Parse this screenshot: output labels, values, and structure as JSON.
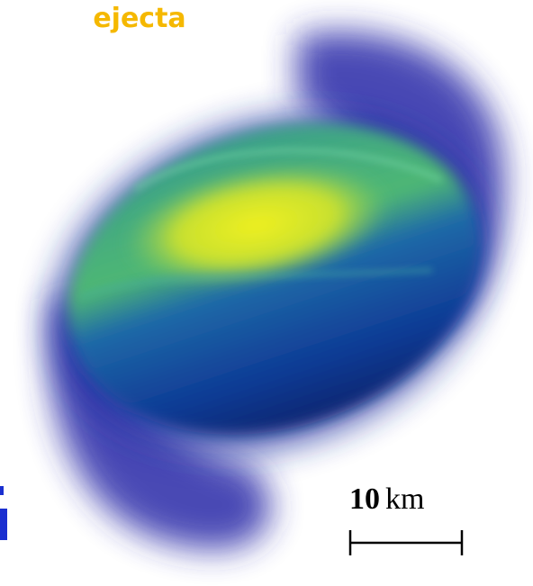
{
  "labels": {
    "top": "ejecta",
    "scale_value": "10",
    "scale_unit": "km"
  }
}
